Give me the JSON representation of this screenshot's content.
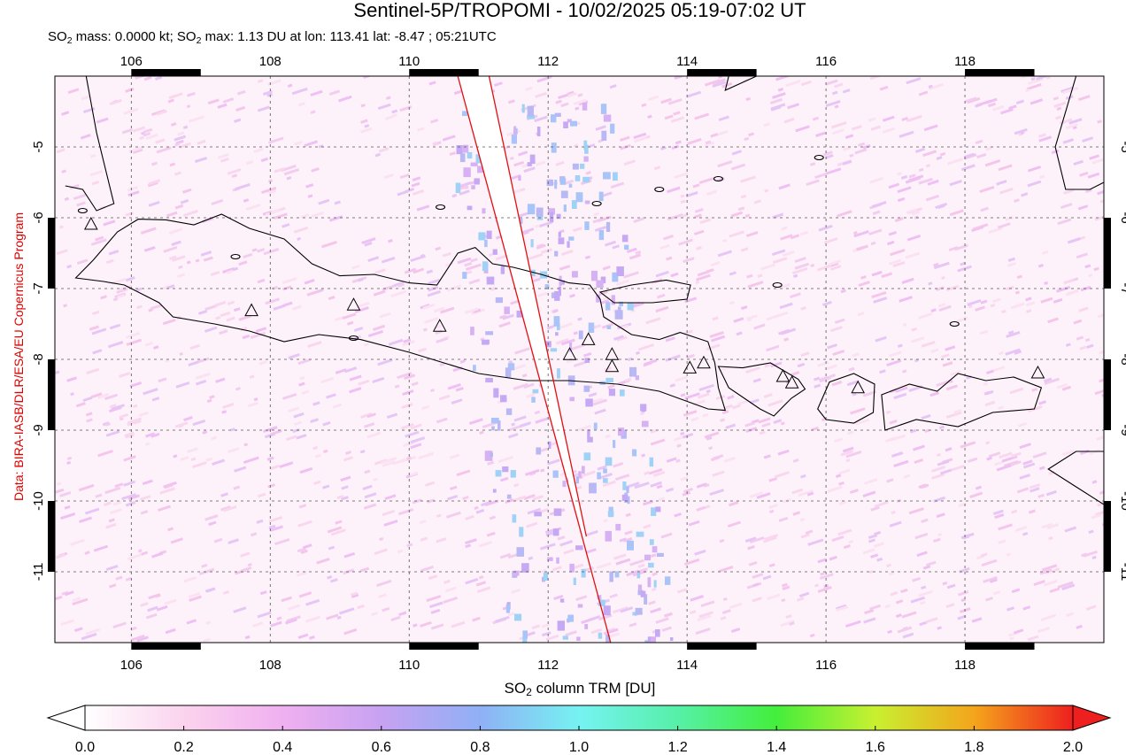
{
  "header": {
    "title": "Sentinel-5P/TROPOMI - 10/02/2025 05:19-07:02 UT",
    "subtitle_parts": [
      "SO",
      "2",
      " mass: 0.0000 kt; SO",
      "2",
      " max: 1.13 DU at lon: 113.41 lat: -8.47 ; 05:21UTC"
    ]
  },
  "credit": "Data: BIRA-IASB/DLR/ESA/EU Copernicus Program",
  "map": {
    "lon_range": [
      104.9,
      120.0
    ],
    "lat_range": [
      -12.0,
      -4.0
    ],
    "lon_ticks": [
      "106",
      "108",
      "110",
      "112",
      "114",
      "116",
      "118"
    ],
    "lat_ticks": [
      "-5",
      "-6",
      "-7",
      "-8",
      "-9",
      "-10",
      "-11"
    ],
    "volcanoes": [
      {
        "lon": 105.42,
        "lat": -6.1
      },
      {
        "lon": 107.73,
        "lat": -7.32
      },
      {
        "lon": 109.2,
        "lat": -7.24
      },
      {
        "lon": 110.44,
        "lat": -7.54
      },
      {
        "lon": 112.31,
        "lat": -7.94
      },
      {
        "lon": 112.58,
        "lat": -7.73
      },
      {
        "lon": 112.92,
        "lat": -7.94
      },
      {
        "lon": 112.92,
        "lat": -8.11
      },
      {
        "lon": 114.04,
        "lat": -8.13
      },
      {
        "lon": 114.24,
        "lat": -8.06
      },
      {
        "lon": 115.38,
        "lat": -8.25
      },
      {
        "lon": 115.51,
        "lat": -8.34
      },
      {
        "lon": 116.46,
        "lat": -8.41
      },
      {
        "lon": 119.05,
        "lat": -8.2
      }
    ],
    "swath_edge": {
      "left_line": [
        [
          110.7,
          -4.0
        ],
        [
          112.9,
          -12.0
        ]
      ],
      "right_line": [
        [
          111.15,
          -4.0
        ],
        [
          112.55,
          -10.5
        ]
      ]
    },
    "colors": {
      "coast": "#000000",
      "swath": "#e01010",
      "grid": "#555555"
    }
  },
  "colorbar": {
    "title_parts": [
      "SO",
      "2",
      " column TRM [DU]"
    ],
    "min": 0.0,
    "max": 2.0,
    "tick_labels": [
      "0.0",
      "0.2",
      "0.4",
      "0.6",
      "0.8",
      "1.0",
      "1.2",
      "1.4",
      "1.6",
      "1.8",
      "2.0"
    ],
    "stops": [
      {
        "v": 0.0,
        "c": "#ffffff"
      },
      {
        "v": 0.2,
        "c": "#fbd3ee"
      },
      {
        "v": 0.4,
        "c": "#f0b0f0"
      },
      {
        "v": 0.6,
        "c": "#c7a2f2"
      },
      {
        "v": 0.8,
        "c": "#8fb0f5"
      },
      {
        "v": 1.0,
        "c": "#76f2f2"
      },
      {
        "v": 1.2,
        "c": "#56f0a8"
      },
      {
        "v": 1.4,
        "c": "#44ee3c"
      },
      {
        "v": 1.6,
        "c": "#c8f030"
      },
      {
        "v": 1.8,
        "c": "#f4a51c"
      },
      {
        "v": 2.0,
        "c": "#ee1f1f"
      }
    ],
    "over_color": "#ee1f1f",
    "under_color": "#ffffff"
  }
}
